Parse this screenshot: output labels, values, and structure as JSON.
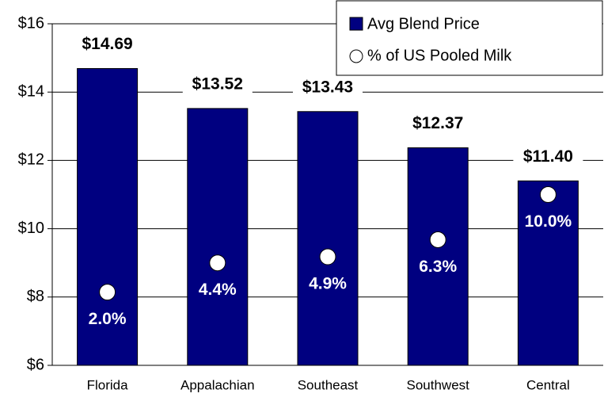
{
  "chart_data": {
    "type": "bar",
    "categories": [
      "Florida",
      "Appalachian",
      "Southeast",
      "Southwest",
      "Central"
    ],
    "series": [
      {
        "name": "Avg Blend Price",
        "color": "#000080",
        "values": [
          14.69,
          13.52,
          13.43,
          12.37,
          11.4
        ],
        "value_labels": [
          "$14.69",
          "$13.52",
          "$13.43",
          "$12.37",
          "$11.40"
        ]
      },
      {
        "name": "% of US Pooled Milk",
        "color": "#ffffff",
        "axis": "y2",
        "values": [
          2.0,
          4.4,
          4.9,
          6.3,
          10.0
        ],
        "value_labels": [
          "2.0%",
          "4.4%",
          "4.9%",
          "6.3%",
          "10.0%"
        ]
      }
    ],
    "ylim": [
      6,
      16
    ],
    "yticks": [
      {
        "value": 6,
        "label": "$6"
      },
      {
        "value": 8,
        "label": "$8"
      },
      {
        "value": 10,
        "label": "$10"
      },
      {
        "value": 12,
        "label": "$12"
      },
      {
        "value": 14,
        "label": "$14"
      },
      {
        "value": 16,
        "label": "$16"
      }
    ],
    "y2lim": [
      -4,
      24
    ],
    "grid": true,
    "legend": "top-right"
  }
}
